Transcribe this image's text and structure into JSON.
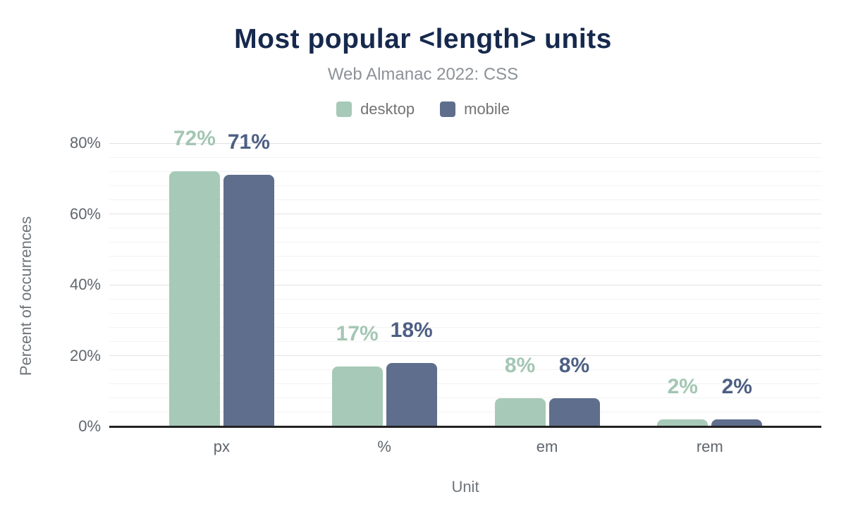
{
  "header": {
    "title": "Most popular <length> units",
    "subtitle": "Web Almanac 2022: CSS"
  },
  "legend": [
    {
      "label": "desktop",
      "color": "#a7c9b8"
    },
    {
      "label": "mobile",
      "color": "#5f6e8c"
    }
  ],
  "chart_data": {
    "type": "bar",
    "title": "Most popular <length> units",
    "subtitle": "Web Almanac 2022: CSS",
    "categories": [
      "px",
      "%",
      "em",
      "rem"
    ],
    "series": [
      {
        "name": "desktop",
        "color": "#a7c9b8",
        "label_color": "#a3c6b3",
        "values": [
          72,
          17,
          8,
          2
        ],
        "labels": [
          "72%",
          "17%",
          "8%",
          "2%"
        ]
      },
      {
        "name": "mobile",
        "color": "#5f6e8c",
        "label_color": "#4d5f83",
        "values": [
          71,
          18,
          8,
          2
        ],
        "labels": [
          "71%",
          "18%",
          "8%",
          "2%"
        ]
      }
    ],
    "xlabel": "Unit",
    "ylabel": "Percent of occurrences",
    "ylim": [
      0,
      80
    ],
    "yticks": [
      {
        "value": 0,
        "label": "0%"
      },
      {
        "value": 20,
        "label": "20%"
      },
      {
        "value": 40,
        "label": "40%"
      },
      {
        "value": 60,
        "label": "60%"
      },
      {
        "value": 80,
        "label": "80%"
      }
    ],
    "grid": {
      "minor_step": 4,
      "major_step": 20,
      "grid_on": true
    },
    "legend_position": "top",
    "value_labels_on": true
  }
}
